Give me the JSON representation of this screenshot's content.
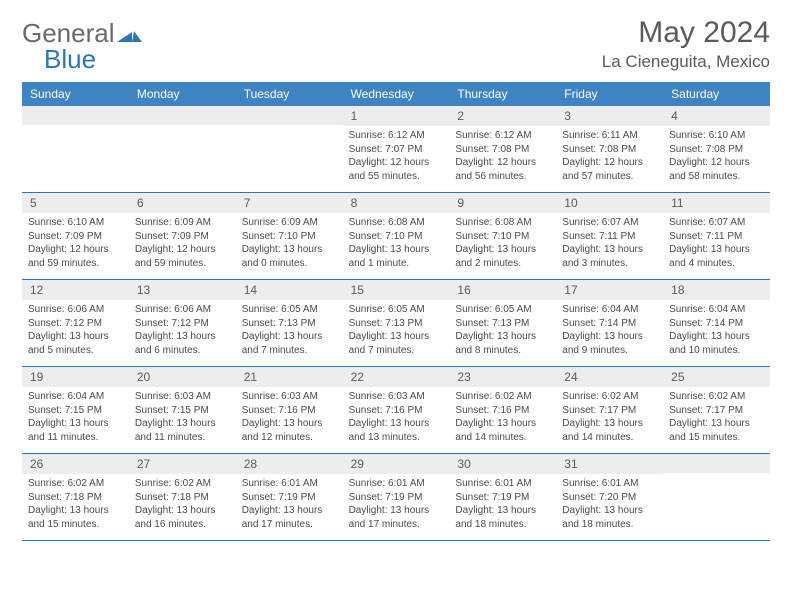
{
  "brand": {
    "part1": "General",
    "part2": "Blue"
  },
  "title": "May 2024",
  "location": "La Cieneguita, Mexico",
  "colors": {
    "header_bg": "#3e83c2",
    "rule": "#2d76b5",
    "daynum_bg": "#ededed",
    "text": "#4a4a4a",
    "title_text": "#5a5a5a"
  },
  "weekdays": [
    "Sunday",
    "Monday",
    "Tuesday",
    "Wednesday",
    "Thursday",
    "Friday",
    "Saturday"
  ],
  "weeks": [
    [
      {
        "num": "",
        "sunrise": "",
        "sunset": "",
        "daylight": ""
      },
      {
        "num": "",
        "sunrise": "",
        "sunset": "",
        "daylight": ""
      },
      {
        "num": "",
        "sunrise": "",
        "sunset": "",
        "daylight": ""
      },
      {
        "num": "1",
        "sunrise": "Sunrise: 6:12 AM",
        "sunset": "Sunset: 7:07 PM",
        "daylight": "Daylight: 12 hours and 55 minutes."
      },
      {
        "num": "2",
        "sunrise": "Sunrise: 6:12 AM",
        "sunset": "Sunset: 7:08 PM",
        "daylight": "Daylight: 12 hours and 56 minutes."
      },
      {
        "num": "3",
        "sunrise": "Sunrise: 6:11 AM",
        "sunset": "Sunset: 7:08 PM",
        "daylight": "Daylight: 12 hours and 57 minutes."
      },
      {
        "num": "4",
        "sunrise": "Sunrise: 6:10 AM",
        "sunset": "Sunset: 7:08 PM",
        "daylight": "Daylight: 12 hours and 58 minutes."
      }
    ],
    [
      {
        "num": "5",
        "sunrise": "Sunrise: 6:10 AM",
        "sunset": "Sunset: 7:09 PM",
        "daylight": "Daylight: 12 hours and 59 minutes."
      },
      {
        "num": "6",
        "sunrise": "Sunrise: 6:09 AM",
        "sunset": "Sunset: 7:09 PM",
        "daylight": "Daylight: 12 hours and 59 minutes."
      },
      {
        "num": "7",
        "sunrise": "Sunrise: 6:09 AM",
        "sunset": "Sunset: 7:10 PM",
        "daylight": "Daylight: 13 hours and 0 minutes."
      },
      {
        "num": "8",
        "sunrise": "Sunrise: 6:08 AM",
        "sunset": "Sunset: 7:10 PM",
        "daylight": "Daylight: 13 hours and 1 minute."
      },
      {
        "num": "9",
        "sunrise": "Sunrise: 6:08 AM",
        "sunset": "Sunset: 7:10 PM",
        "daylight": "Daylight: 13 hours and 2 minutes."
      },
      {
        "num": "10",
        "sunrise": "Sunrise: 6:07 AM",
        "sunset": "Sunset: 7:11 PM",
        "daylight": "Daylight: 13 hours and 3 minutes."
      },
      {
        "num": "11",
        "sunrise": "Sunrise: 6:07 AM",
        "sunset": "Sunset: 7:11 PM",
        "daylight": "Daylight: 13 hours and 4 minutes."
      }
    ],
    [
      {
        "num": "12",
        "sunrise": "Sunrise: 6:06 AM",
        "sunset": "Sunset: 7:12 PM",
        "daylight": "Daylight: 13 hours and 5 minutes."
      },
      {
        "num": "13",
        "sunrise": "Sunrise: 6:06 AM",
        "sunset": "Sunset: 7:12 PM",
        "daylight": "Daylight: 13 hours and 6 minutes."
      },
      {
        "num": "14",
        "sunrise": "Sunrise: 6:05 AM",
        "sunset": "Sunset: 7:13 PM",
        "daylight": "Daylight: 13 hours and 7 minutes."
      },
      {
        "num": "15",
        "sunrise": "Sunrise: 6:05 AM",
        "sunset": "Sunset: 7:13 PM",
        "daylight": "Daylight: 13 hours and 7 minutes."
      },
      {
        "num": "16",
        "sunrise": "Sunrise: 6:05 AM",
        "sunset": "Sunset: 7:13 PM",
        "daylight": "Daylight: 13 hours and 8 minutes."
      },
      {
        "num": "17",
        "sunrise": "Sunrise: 6:04 AM",
        "sunset": "Sunset: 7:14 PM",
        "daylight": "Daylight: 13 hours and 9 minutes."
      },
      {
        "num": "18",
        "sunrise": "Sunrise: 6:04 AM",
        "sunset": "Sunset: 7:14 PM",
        "daylight": "Daylight: 13 hours and 10 minutes."
      }
    ],
    [
      {
        "num": "19",
        "sunrise": "Sunrise: 6:04 AM",
        "sunset": "Sunset: 7:15 PM",
        "daylight": "Daylight: 13 hours and 11 minutes."
      },
      {
        "num": "20",
        "sunrise": "Sunrise: 6:03 AM",
        "sunset": "Sunset: 7:15 PM",
        "daylight": "Daylight: 13 hours and 11 minutes."
      },
      {
        "num": "21",
        "sunrise": "Sunrise: 6:03 AM",
        "sunset": "Sunset: 7:16 PM",
        "daylight": "Daylight: 13 hours and 12 minutes."
      },
      {
        "num": "22",
        "sunrise": "Sunrise: 6:03 AM",
        "sunset": "Sunset: 7:16 PM",
        "daylight": "Daylight: 13 hours and 13 minutes."
      },
      {
        "num": "23",
        "sunrise": "Sunrise: 6:02 AM",
        "sunset": "Sunset: 7:16 PM",
        "daylight": "Daylight: 13 hours and 14 minutes."
      },
      {
        "num": "24",
        "sunrise": "Sunrise: 6:02 AM",
        "sunset": "Sunset: 7:17 PM",
        "daylight": "Daylight: 13 hours and 14 minutes."
      },
      {
        "num": "25",
        "sunrise": "Sunrise: 6:02 AM",
        "sunset": "Sunset: 7:17 PM",
        "daylight": "Daylight: 13 hours and 15 minutes."
      }
    ],
    [
      {
        "num": "26",
        "sunrise": "Sunrise: 6:02 AM",
        "sunset": "Sunset: 7:18 PM",
        "daylight": "Daylight: 13 hours and 15 minutes."
      },
      {
        "num": "27",
        "sunrise": "Sunrise: 6:02 AM",
        "sunset": "Sunset: 7:18 PM",
        "daylight": "Daylight: 13 hours and 16 minutes."
      },
      {
        "num": "28",
        "sunrise": "Sunrise: 6:01 AM",
        "sunset": "Sunset: 7:19 PM",
        "daylight": "Daylight: 13 hours and 17 minutes."
      },
      {
        "num": "29",
        "sunrise": "Sunrise: 6:01 AM",
        "sunset": "Sunset: 7:19 PM",
        "daylight": "Daylight: 13 hours and 17 minutes."
      },
      {
        "num": "30",
        "sunrise": "Sunrise: 6:01 AM",
        "sunset": "Sunset: 7:19 PM",
        "daylight": "Daylight: 13 hours and 18 minutes."
      },
      {
        "num": "31",
        "sunrise": "Sunrise: 6:01 AM",
        "sunset": "Sunset: 7:20 PM",
        "daylight": "Daylight: 13 hours and 18 minutes."
      },
      {
        "num": "",
        "sunrise": "",
        "sunset": "",
        "daylight": ""
      }
    ]
  ]
}
